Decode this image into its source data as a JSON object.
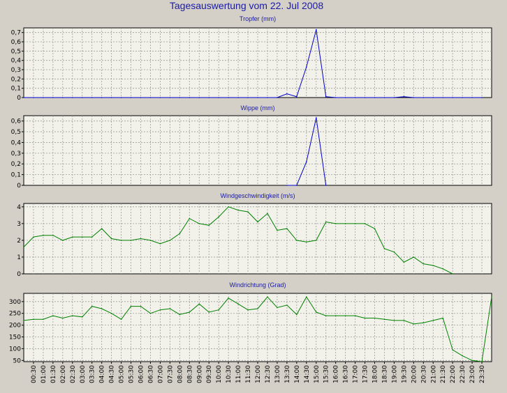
{
  "page": {
    "title": "Tagesauswertung vom 22. Jul 2008"
  },
  "colors": {
    "background": "#d4d0c8",
    "plot_background": "#f2f2ea",
    "grid": "#9a9a9a",
    "title_blue": "#1a1aa8",
    "series_blue": "#0000cc",
    "series_green": "#008000"
  },
  "x_axis": {
    "tick_labels": [
      "00:30",
      "01:00",
      "01:30",
      "02:00",
      "02:30",
      "03:00",
      "03:30",
      "04:00",
      "04:30",
      "05:00",
      "05:30",
      "06:00",
      "06:30",
      "07:00",
      "07:30",
      "08:00",
      "08:30",
      "09:00",
      "09:30",
      "10:00",
      "10:30",
      "11:00",
      "11:30",
      "12:00",
      "12:30",
      "13:00",
      "13:30",
      "14:00",
      "14:30",
      "15:00",
      "15:30",
      "16:00",
      "16:30",
      "17:00",
      "17:30",
      "18:00",
      "18:30",
      "19:00",
      "19:30",
      "20:00",
      "20:30",
      "21:00",
      "21:30",
      "22:00",
      "22:30",
      "23:00",
      "23:30"
    ]
  },
  "chart_data": [
    {
      "type": "line",
      "title": "Tropfer (mm)",
      "ylim": [
        0,
        0.75
      ],
      "yticks": [
        0,
        0.1,
        0.2,
        0.3,
        0.4,
        0.5,
        0.6,
        0.7
      ],
      "ytick_labels": [
        "0",
        "0,1",
        "0,2",
        "0,3",
        "0,4",
        "0,5",
        "0,6",
        "0,7"
      ],
      "grid": true,
      "color": "#0000cc",
      "x": [
        "00:00",
        "00:30",
        "01:00",
        "01:30",
        "02:00",
        "02:30",
        "03:00",
        "03:30",
        "04:00",
        "04:30",
        "05:00",
        "05:30",
        "06:00",
        "06:30",
        "07:00",
        "07:30",
        "08:00",
        "08:30",
        "09:00",
        "09:30",
        "10:00",
        "10:30",
        "11:00",
        "11:30",
        "12:00",
        "12:30",
        "13:00",
        "13:30",
        "14:00",
        "14:30",
        "15:00",
        "15:30",
        "16:00",
        "16:30",
        "17:00",
        "17:30",
        "18:00",
        "18:30",
        "19:00",
        "19:30",
        "20:00",
        "20:30",
        "21:00",
        "21:30",
        "22:00",
        "22:30",
        "23:00",
        "23:30"
      ],
      "values": [
        0,
        0,
        0,
        0,
        0,
        0,
        0,
        0,
        0,
        0,
        0,
        0,
        0,
        0,
        0,
        0,
        0,
        0,
        0,
        0,
        0,
        0,
        0,
        0,
        0,
        0,
        0,
        0.04,
        0.01,
        0.33,
        0.73,
        0.01,
        0,
        0,
        0,
        0,
        0,
        0,
        0,
        0.01,
        0,
        0,
        0,
        0,
        0,
        0,
        0,
        0
      ]
    },
    {
      "type": "line",
      "title": "Wippe (mm)",
      "ylim": [
        0,
        0.65
      ],
      "yticks": [
        0,
        0.1,
        0.2,
        0.3,
        0.4,
        0.5,
        0.6
      ],
      "ytick_labels": [
        "0",
        "0,1",
        "0,2",
        "0,3",
        "0,4",
        "0,5",
        "0,6"
      ],
      "grid": true,
      "color": "#0000cc",
      "x": [
        "13:30",
        "14:00",
        "14:30",
        "15:00",
        "15:30"
      ],
      "values": [
        0,
        0,
        0.22,
        0.63,
        0
      ]
    },
    {
      "type": "line",
      "title": "Windgeschwindigkeit (m/s)",
      "ylim": [
        0,
        4.2
      ],
      "yticks": [
        0,
        1,
        2,
        3,
        4
      ],
      "ytick_labels": [
        "0",
        "1",
        "2",
        "3",
        "4"
      ],
      "grid": true,
      "color": "#008000",
      "x": [
        "00:00",
        "00:30",
        "01:00",
        "01:30",
        "02:00",
        "02:30",
        "03:00",
        "03:30",
        "04:00",
        "04:30",
        "05:00",
        "05:30",
        "06:00",
        "06:30",
        "07:00",
        "07:30",
        "08:00",
        "08:30",
        "09:00",
        "09:30",
        "10:00",
        "10:30",
        "11:00",
        "11:30",
        "12:00",
        "12:30",
        "13:00",
        "13:30",
        "14:00",
        "14:30",
        "15:00",
        "15:30",
        "16:00",
        "16:30",
        "17:00",
        "17:30",
        "18:00",
        "18:30",
        "19:00",
        "19:30",
        "20:00",
        "20:30",
        "21:00",
        "21:30",
        "22:00"
      ],
      "values": [
        1.6,
        2.2,
        2.3,
        2.3,
        2.0,
        2.2,
        2.2,
        2.2,
        2.7,
        2.1,
        2.0,
        2.0,
        2.1,
        2.0,
        1.8,
        2.0,
        2.4,
        3.3,
        3.0,
        2.9,
        3.4,
        4.0,
        3.8,
        3.7,
        3.1,
        3.6,
        2.6,
        2.7,
        2.0,
        1.9,
        2.0,
        3.1,
        3.0,
        3.0,
        3.0,
        3.0,
        2.7,
        1.5,
        1.3,
        0.7,
        1.0,
        0.6,
        0.5,
        0.3,
        0
      ]
    },
    {
      "type": "line",
      "title": "Windrichtung (Grad)",
      "ylim": [
        45,
        335
      ],
      "yticks": [
        50,
        100,
        150,
        200,
        250,
        300
      ],
      "ytick_labels": [
        "50",
        "100",
        "150",
        "200",
        "250",
        "300"
      ],
      "grid": true,
      "color": "#008000",
      "x": [
        "00:00",
        "00:30",
        "01:00",
        "01:30",
        "02:00",
        "02:30",
        "03:00",
        "03:30",
        "04:00",
        "04:30",
        "05:00",
        "05:30",
        "06:00",
        "06:30",
        "07:00",
        "07:30",
        "08:00",
        "08:30",
        "09:00",
        "09:30",
        "10:00",
        "10:30",
        "11:00",
        "11:30",
        "12:00",
        "12:30",
        "13:00",
        "13:30",
        "14:00",
        "14:30",
        "15:00",
        "15:30",
        "16:00",
        "16:30",
        "17:00",
        "17:30",
        "18:00",
        "18:30",
        "19:00",
        "19:30",
        "20:00",
        "20:30",
        "21:00",
        "21:30",
        "22:00",
        "22:30",
        "23:00",
        "23:30",
        "24:00"
      ],
      "values": [
        220,
        225,
        225,
        240,
        230,
        240,
        235,
        280,
        270,
        250,
        225,
        280,
        280,
        250,
        265,
        270,
        245,
        255,
        290,
        255,
        265,
        315,
        290,
        265,
        270,
        320,
        275,
        285,
        245,
        320,
        255,
        240,
        240,
        240,
        240,
        230,
        230,
        225,
        220,
        220,
        205,
        210,
        220,
        230,
        95,
        70,
        50,
        45,
        320
      ]
    }
  ]
}
